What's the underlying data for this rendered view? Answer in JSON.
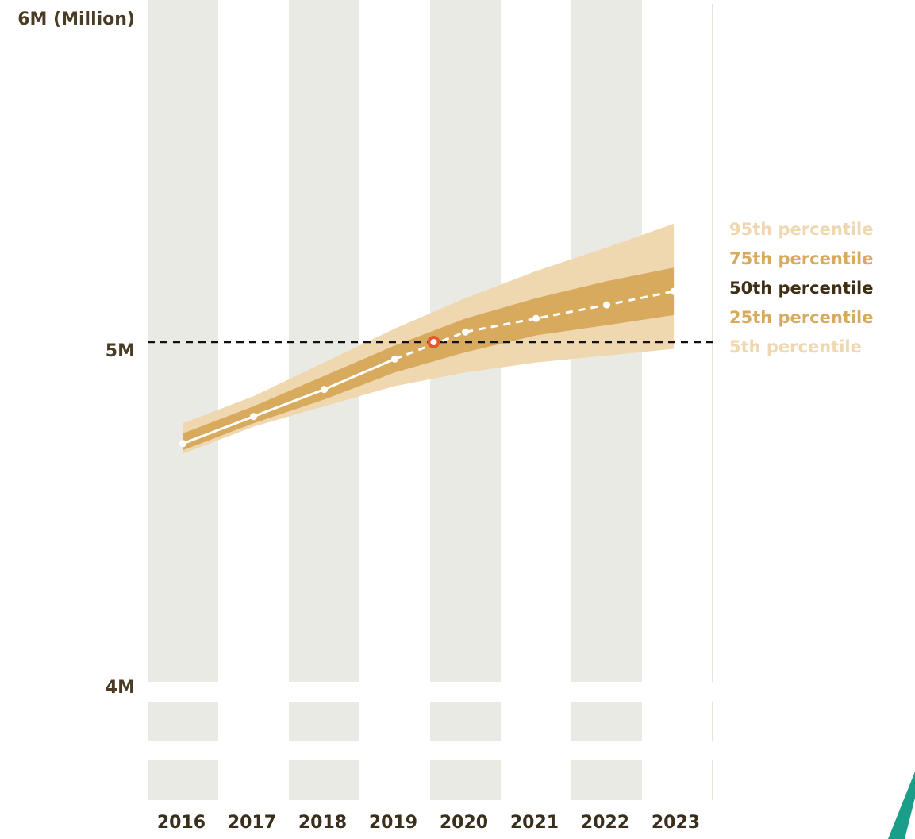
{
  "chart_data": {
    "type": "area",
    "title": "",
    "xlabel": "",
    "ylabel": "6M (Million)",
    "ylim": [
      4,
      6
    ],
    "y_tick_labels": [
      "5M",
      "4M"
    ],
    "categories": [
      "2016",
      "2017",
      "2018",
      "2019",
      "2020",
      "2021",
      "2022",
      "2023"
    ],
    "x": [
      2016.5,
      2017.5,
      2018.5,
      2019.5,
      2020.5,
      2021.5,
      2022.5,
      2023.45
    ],
    "series": [
      {
        "name": "95th percentile",
        "values": [
          4.76,
          4.84,
          4.94,
          5.04,
          5.13,
          5.21,
          5.28,
          5.35
        ],
        "color": "#efd7b0"
      },
      {
        "name": "75th percentile",
        "values": [
          4.73,
          4.81,
          4.9,
          4.99,
          5.07,
          5.13,
          5.18,
          5.22
        ],
        "color": "#d8aa5e"
      },
      {
        "name": "50th percentile",
        "values": [
          4.7,
          4.78,
          4.86,
          4.95,
          5.03,
          5.07,
          5.11,
          5.15
        ],
        "color": "#3d2e14"
      },
      {
        "name": "25th percentile",
        "values": [
          4.68,
          4.76,
          4.83,
          4.91,
          4.97,
          5.02,
          5.05,
          5.08
        ],
        "color": "#d8aa5e"
      },
      {
        "name": "5th percentile",
        "values": [
          4.67,
          4.75,
          4.81,
          4.87,
          4.91,
          4.94,
          4.96,
          4.98
        ],
        "color": "#efd7b0"
      }
    ],
    "median_points": [
      {
        "x": 2016.5,
        "y": 4.7,
        "projected": false
      },
      {
        "x": 2017.5,
        "y": 4.78,
        "projected": false
      },
      {
        "x": 2018.5,
        "y": 4.86,
        "projected": false
      },
      {
        "x": 2019.5,
        "y": 4.95,
        "projected": false
      },
      {
        "x": 2020.5,
        "y": 5.03,
        "projected": true
      },
      {
        "x": 2021.5,
        "y": 5.07,
        "projected": true
      },
      {
        "x": 2022.5,
        "y": 5.11,
        "projected": true
      },
      {
        "x": 2023.45,
        "y": 5.15,
        "projected": true
      }
    ],
    "highlight_point": {
      "x": 2020.05,
      "y": 5.0,
      "color": "#e8562a"
    },
    "reference_line": {
      "y": 5.0,
      "style": "dashed",
      "color": "#111111"
    },
    "colors": {
      "column": "#eaeae5",
      "band_outer": "#efd7b0",
      "band_inner": "#d8aa5e",
      "median": "#ffffff",
      "axis_text": "#4a3b24"
    },
    "grid": "alternating vertical year columns",
    "legend_position": "right"
  }
}
